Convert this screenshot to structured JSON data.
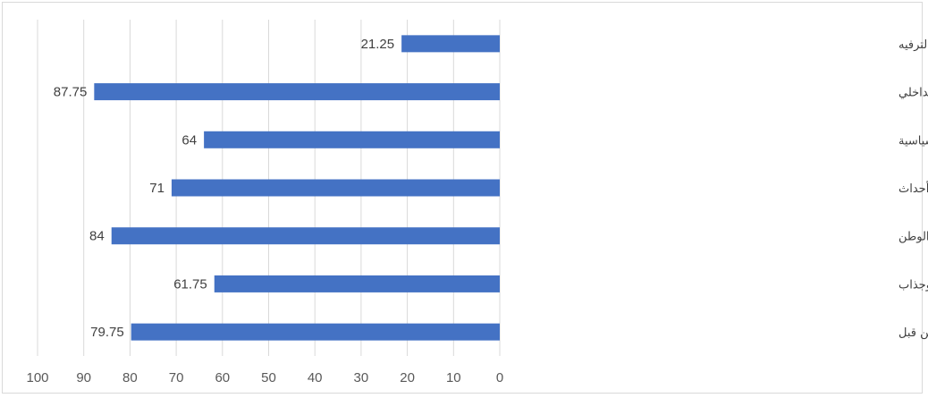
{
  "chart_data": {
    "type": "bar",
    "orientation": "horizontal",
    "x_direction": "reversed",
    "categories": [
      "للتسلية والترفيه",
      "لأنها تنمي روح الوطنية والانتماء بداخلي",
      "متابعة تفاصيل الأحداث التاريخية السياسية",
      "معرفة أحداث الثورة التي عاصرها الشباب المصري وما تلاها من أحداث",
      "لأجل التعرف على قصص الشهداء الذين ضحوا بحياتهم من أجل هذا الوطن",
      "تقديم الأحداث السياسية في قالب درامي شيق وجذاب",
      "معرفة الأسرار والتفاصيل التي لم يتم تناولها أو ذكرها من قبل"
    ],
    "values": [
      21.25,
      87.75,
      64,
      71,
      84,
      61.75,
      79.75
    ],
    "data_labels": [
      "21.25",
      "87.75",
      "64",
      "71",
      "84",
      "61.75",
      "79.75"
    ],
    "xlim": [
      0,
      100
    ],
    "x_ticks": [
      "0",
      "10",
      "20",
      "30",
      "40",
      "50",
      "60",
      "70",
      "80",
      "90",
      "100"
    ],
    "title": "",
    "xlabel": "",
    "ylabel": "",
    "grid": "vertical",
    "legend": "none",
    "bar_color": "#4472C4",
    "grid_color": "#d9d9d9"
  }
}
